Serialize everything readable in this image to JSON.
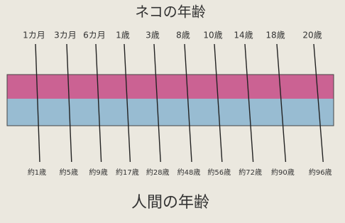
{
  "top_title": "ネコの年齢",
  "bottom_title": "人間の年齢",
  "pairs": [
    {
      "cat": "1カ月",
      "human": "約1歳"
    },
    {
      "cat": "3カ月",
      "human": "約5歳"
    },
    {
      "cat": "6カ月",
      "human": "約9歳"
    },
    {
      "cat": "1歳",
      "human": "約17歳"
    },
    {
      "cat": "3歳",
      "human": "約28歳"
    },
    {
      "cat": "8歳",
      "human": "約48歳"
    },
    {
      "cat": "10歳",
      "human": "約56歳"
    },
    {
      "cat": "14歳",
      "human": "約72歳"
    },
    {
      "cat": "18歳",
      "human": "約90歳"
    },
    {
      "cat": "20歳",
      "human": "約96歳"
    }
  ]
}
